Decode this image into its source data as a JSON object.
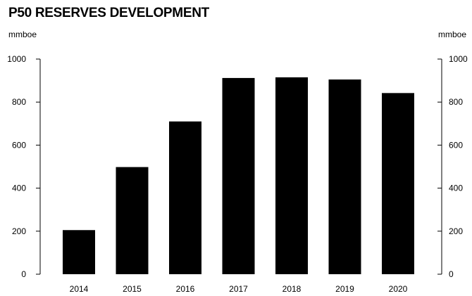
{
  "chart_data": {
    "type": "bar",
    "title": "P50 RESERVES DEVELOPMENT",
    "y_unit_left": "mmboe",
    "y_unit_right": "mmboe",
    "categories": [
      "2014",
      "2015",
      "2016",
      "2017",
      "2018",
      "2019",
      "2020"
    ],
    "values": [
      205,
      498,
      710,
      912,
      915,
      905,
      842
    ],
    "ylim": [
      0,
      1000
    ],
    "yticks": [
      0,
      200,
      400,
      600,
      800,
      1000
    ],
    "grid": false,
    "dual_axis": true,
    "bar_color": "#000000"
  }
}
